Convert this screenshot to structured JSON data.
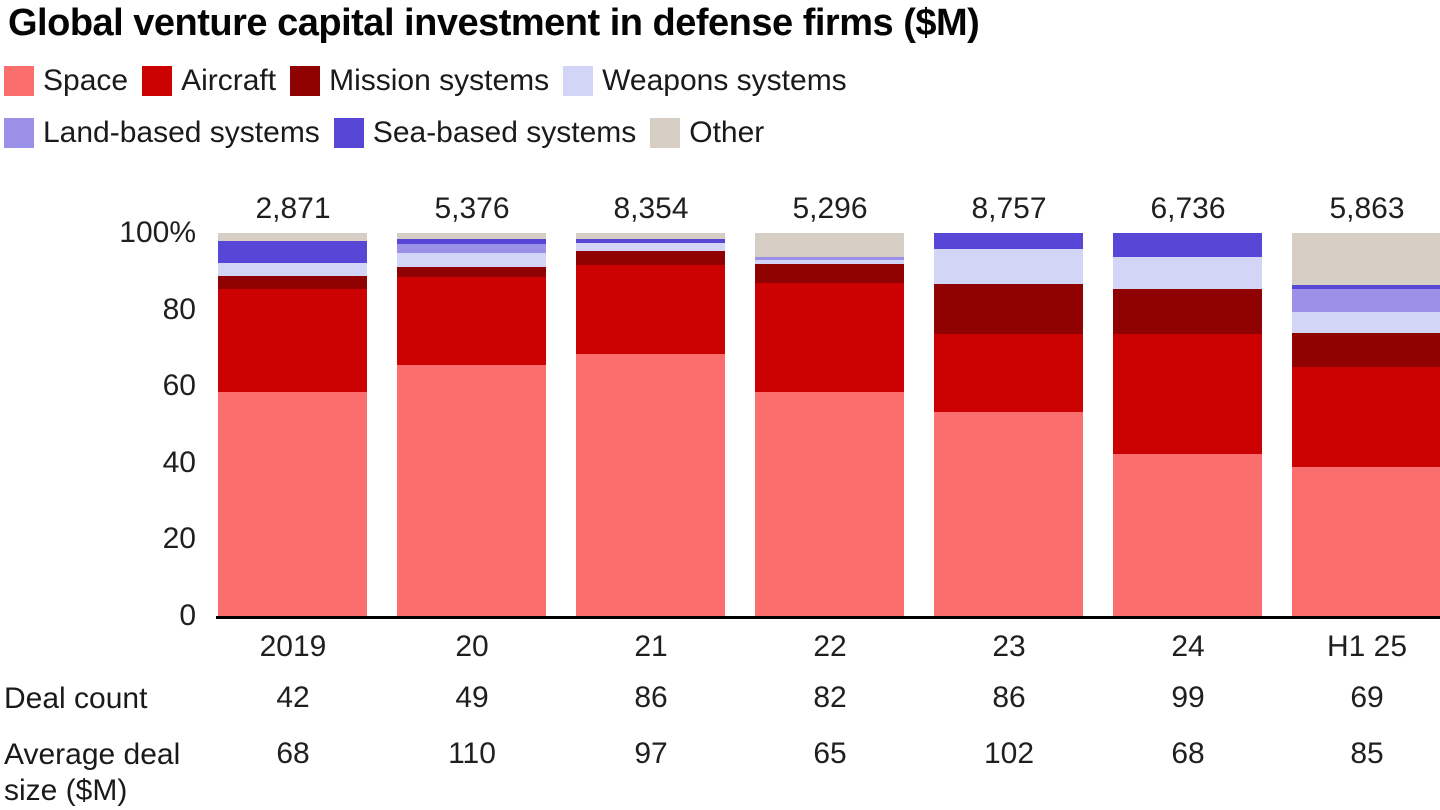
{
  "title": "Global venture capital investment in defense firms ($M)",
  "legend": [
    {
      "label": "Space",
      "color": "#FB6E6E"
    },
    {
      "label": "Aircraft",
      "color": "#CC0101"
    },
    {
      "label": "Mission systems",
      "color": "#900101"
    },
    {
      "label": "Weapons systems",
      "color": "#D2D5F6"
    },
    {
      "label": "Land-based systems",
      "color": "#9C91E8"
    },
    {
      "label": "Sea-based systems",
      "color": "#5847D6"
    },
    {
      "label": "Other",
      "color": "#D6CEC4"
    }
  ],
  "chart_data": {
    "type": "bar",
    "stacked": true,
    "normalized_percent": true,
    "title": "Global venture capital investment in defense firms ($M)",
    "categories": [
      "2019",
      "20",
      "21",
      "22",
      "23",
      "24",
      "H1 25"
    ],
    "totals": [
      "2,871",
      "5,376",
      "8,354",
      "5,296",
      "8,757",
      "6,736",
      "5,863"
    ],
    "yticks": [
      "100%",
      "80",
      "60",
      "40",
      "20",
      "0"
    ],
    "ylim": [
      0,
      100
    ],
    "legend_position": "top",
    "grid": false,
    "series": [
      {
        "name": "Space",
        "color": "#FB6E6E",
        "values": [
          58.5,
          65.5,
          68.5,
          58.5,
          53.2,
          42.2,
          38.8
        ]
      },
      {
        "name": "Aircraft",
        "color": "#CC0101",
        "values": [
          27.0,
          23.0,
          23.2,
          28.5,
          20.5,
          31.5,
          26.2
        ]
      },
      {
        "name": "Mission systems",
        "color": "#900101",
        "values": [
          3.3,
          2.6,
          3.7,
          4.8,
          13.0,
          11.8,
          9.0
        ]
      },
      {
        "name": "Weapons systems",
        "color": "#D2D5F6",
        "values": [
          3.4,
          3.7,
          2.0,
          1.2,
          9.2,
          8.3,
          5.4
        ]
      },
      {
        "name": "Land-based systems",
        "color": "#9C91E8",
        "values": [
          0,
          2.3,
          0,
          0.8,
          0,
          0,
          6.0
        ]
      },
      {
        "name": "Sea-based systems",
        "color": "#5847D6",
        "values": [
          5.7,
          1.3,
          1.0,
          0,
          4.1,
          6.2,
          1.0
        ]
      },
      {
        "name": "Other",
        "color": "#D6CEC4",
        "values": [
          2.1,
          1.6,
          1.6,
          6.2,
          0,
          0,
          13.6
        ]
      }
    ]
  },
  "table": {
    "rows": [
      {
        "label": "Deal count",
        "values": [
          "42",
          "49",
          "86",
          "82",
          "86",
          "99",
          "69"
        ]
      },
      {
        "label": "Average deal size ($M)",
        "values": [
          "68",
          "110",
          "97",
          "65",
          "102",
          "68",
          "85"
        ]
      }
    ]
  }
}
